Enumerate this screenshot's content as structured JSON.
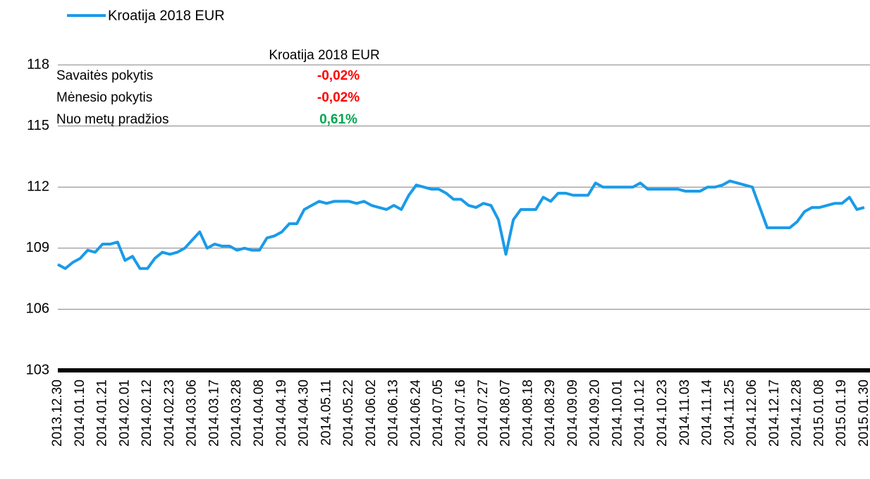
{
  "chart_data": {
    "type": "line",
    "series": [
      {
        "name": "Kroatija 2018 EUR",
        "color": "#1a9be8",
        "values": [
          108.2,
          108.0,
          108.3,
          108.5,
          108.9,
          108.8,
          109.2,
          109.2,
          109.3,
          108.4,
          108.6,
          108.0,
          108.0,
          108.5,
          108.8,
          108.7,
          108.8,
          109.0,
          109.4,
          109.8,
          109.0,
          109.2,
          109.1,
          109.1,
          108.9,
          109.0,
          108.9,
          108.9,
          109.5,
          109.6,
          109.8,
          110.2,
          110.2,
          110.9,
          111.1,
          111.3,
          111.2,
          111.3,
          111.3,
          111.3,
          111.2,
          111.3,
          111.1,
          111.0,
          110.9,
          111.1,
          110.9,
          111.6,
          112.1,
          112.0,
          111.9,
          111.9,
          111.7,
          111.4,
          111.4,
          111.1,
          111.0,
          111.2,
          111.1,
          110.4,
          108.7,
          110.4,
          110.9,
          110.9,
          110.9,
          111.5,
          111.3,
          111.7,
          111.7,
          111.6,
          111.6,
          111.6,
          112.2,
          112.0,
          112.0,
          112.0,
          112.0,
          112.0,
          112.2,
          111.9,
          111.9,
          111.9,
          111.9,
          111.9,
          111.8,
          111.8,
          111.8,
          112.0,
          112.0,
          112.1,
          112.3,
          112.2,
          112.1,
          112.0,
          111.0,
          110.0,
          110.0,
          110.0,
          110.0,
          110.3,
          110.8,
          111.0,
          111.0,
          111.1,
          111.2,
          111.2,
          111.5,
          110.9,
          111.0
        ]
      }
    ],
    "categories": [
      "2013.12.30",
      null,
      null,
      "2014.01.10",
      null,
      null,
      "2014.01.21",
      null,
      null,
      "2014.02.01",
      null,
      null,
      "2014.02.12",
      null,
      null,
      "2014.02.23",
      null,
      null,
      "2014.03.06",
      null,
      null,
      "2014.03.17",
      null,
      null,
      "2014.03.28",
      null,
      null,
      "2014.04.08",
      null,
      null,
      "2014.04.19",
      null,
      null,
      "2014.04.30",
      null,
      null,
      "2014.05.11",
      null,
      null,
      "2014.05.22",
      null,
      null,
      "2014.06.02",
      null,
      null,
      "2014.06.13",
      null,
      null,
      "2014.06.24",
      null,
      null,
      "2014.07.05",
      null,
      null,
      "2014.07.16",
      null,
      null,
      "2014.07.27",
      null,
      null,
      "2014.08.07",
      null,
      null,
      "2014.08.18",
      null,
      null,
      "2014.08.29",
      null,
      null,
      "2014.09.09",
      null,
      null,
      "2014.09.20",
      null,
      null,
      "2014.10.01",
      null,
      null,
      "2014.10.12",
      null,
      null,
      "2014.10.23",
      null,
      null,
      "2014.11.03",
      null,
      null,
      "2014.11.14",
      null,
      null,
      "2014.11.25",
      null,
      null,
      "2014.12.06",
      null,
      null,
      "2014.12.17",
      null,
      null,
      "2014.12.28",
      null,
      null,
      "2015.01.08",
      null,
      null,
      "2015.01.19",
      null,
      null,
      "2015.01.30"
    ],
    "ylim": [
      103,
      118
    ],
    "yticks": [
      103,
      106,
      109,
      112,
      115,
      118
    ],
    "grid": true,
    "stats_title": "Kroatija 2018 EUR",
    "stats": [
      {
        "label": "Savaitės pokytis",
        "value": "-0,02%",
        "color": "#ff0000"
      },
      {
        "label": "Mėnesio pokytis",
        "value": "-0,02%",
        "color": "#ff0000"
      },
      {
        "label": "Nuo metų pradžios",
        "value": "0,61%",
        "color": "#00a650"
      }
    ]
  }
}
